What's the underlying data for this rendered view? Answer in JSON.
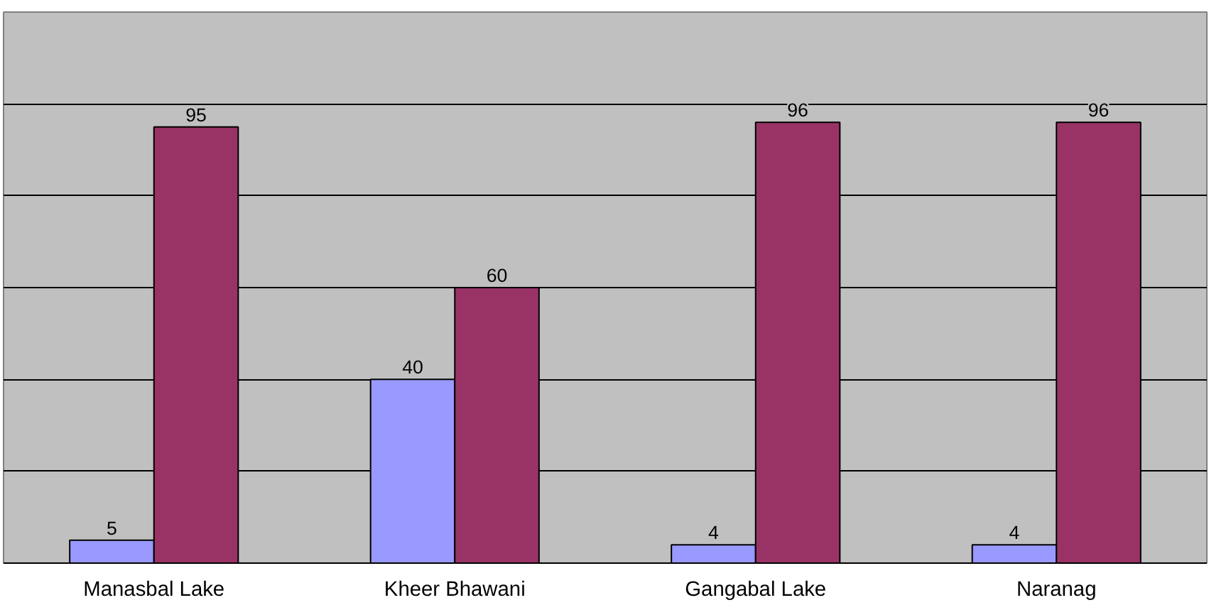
{
  "chart_data": {
    "type": "bar",
    "categories": [
      "Manasbal Lake",
      "Kheer Bhawani",
      "Gangabal Lake",
      "Naranag"
    ],
    "series": [
      {
        "color": "#9999ff",
        "values": [
          5,
          40,
          4,
          4
        ]
      },
      {
        "color": "#993366",
        "values": [
          95,
          60,
          96,
          96
        ]
      }
    ],
    "ylim": [
      0,
      120
    ],
    "yticks": [
      {
        "value": 0,
        "label": null
      },
      {
        "value": 20,
        "label": null
      },
      {
        "value": 40,
        "label": null
      },
      {
        "value": 60,
        "label": null
      },
      {
        "value": 80,
        "label": null
      },
      {
        "value": 100,
        "label": null
      },
      {
        "value": 120,
        "label": null
      }
    ],
    "tick_labels": "x",
    "grid": "y",
    "data_labels": true
  }
}
